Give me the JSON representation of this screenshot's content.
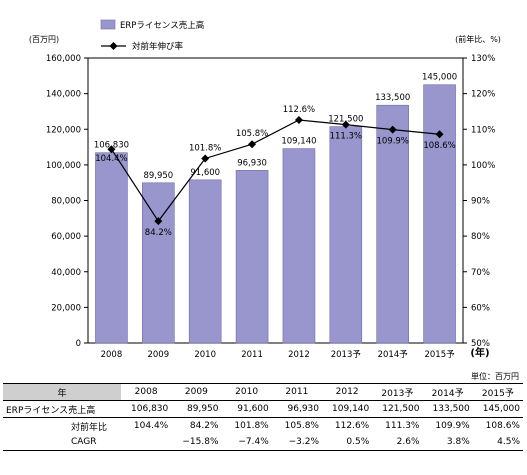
{
  "chart_data": {
    "type": "bar",
    "categories": [
      "2008",
      "2009",
      "2010",
      "2011",
      "2012",
      "2013予",
      "2014予",
      "2015予"
    ],
    "series": [
      {
        "name": "ERPライセンス売上高",
        "type": "bar",
        "axis": "left",
        "values": [
          106830,
          89950,
          91600,
          96930,
          109140,
          121500,
          133500,
          145000
        ],
        "labels": [
          "106,830",
          "89,950",
          "91,600",
          "96,930",
          "109,140",
          "121,500",
          "133,500",
          "145,000"
        ]
      },
      {
        "name": "対前年伸び率",
        "type": "line",
        "axis": "right",
        "values": [
          104.4,
          84.2,
          101.8,
          105.8,
          112.6,
          111.3,
          109.9,
          108.6
        ],
        "labels": [
          "104.4%",
          "84.2%",
          "101.8%",
          "105.8%",
          "112.6%",
          "111.3%",
          "109.9%",
          "108.6%"
        ]
      }
    ],
    "ylabel": "(百万円)",
    "ylabel_right": "(前年比、%)",
    "xlabel": "(年)",
    "ylim": [
      0,
      160000
    ],
    "ylim_right": [
      50,
      130
    ],
    "yticks": [
      "0",
      "20,000",
      "40,000",
      "60,000",
      "80,000",
      "100,000",
      "120,000",
      "140,000",
      "160,000"
    ],
    "yticks_right": [
      "50%",
      "60%",
      "70%",
      "80%",
      "90%",
      "100%",
      "110%",
      "120%",
      "130%"
    ],
    "grid": false,
    "legend_position": "top-left",
    "colors": {
      "bar": "#9896cc",
      "bar_edge": "#6f6daa",
      "line": "#000000"
    }
  },
  "table": {
    "unit_note": "単位：百万円",
    "header_label": "年",
    "columns": [
      "2008",
      "2009",
      "2010",
      "2011",
      "2012",
      "2013予",
      "2014予",
      "2015予"
    ],
    "rows": [
      {
        "label": "ERPライセンス売上高",
        "values": [
          "106,830",
          "89,950",
          "91,600",
          "96,930",
          "109,140",
          "121,500",
          "133,500",
          "145,000"
        ]
      },
      {
        "label": "対前年比",
        "values": [
          "104.4%",
          "84.2%",
          "101.8%",
          "105.8%",
          "112.6%",
          "111.3%",
          "109.9%",
          "108.6%"
        ]
      },
      {
        "label": "CAGR",
        "values": [
          "",
          "−15.8%",
          "−7.4%",
          "−3.2%",
          "0.5%",
          "2.6%",
          "3.8%",
          "4.5%"
        ]
      }
    ]
  }
}
